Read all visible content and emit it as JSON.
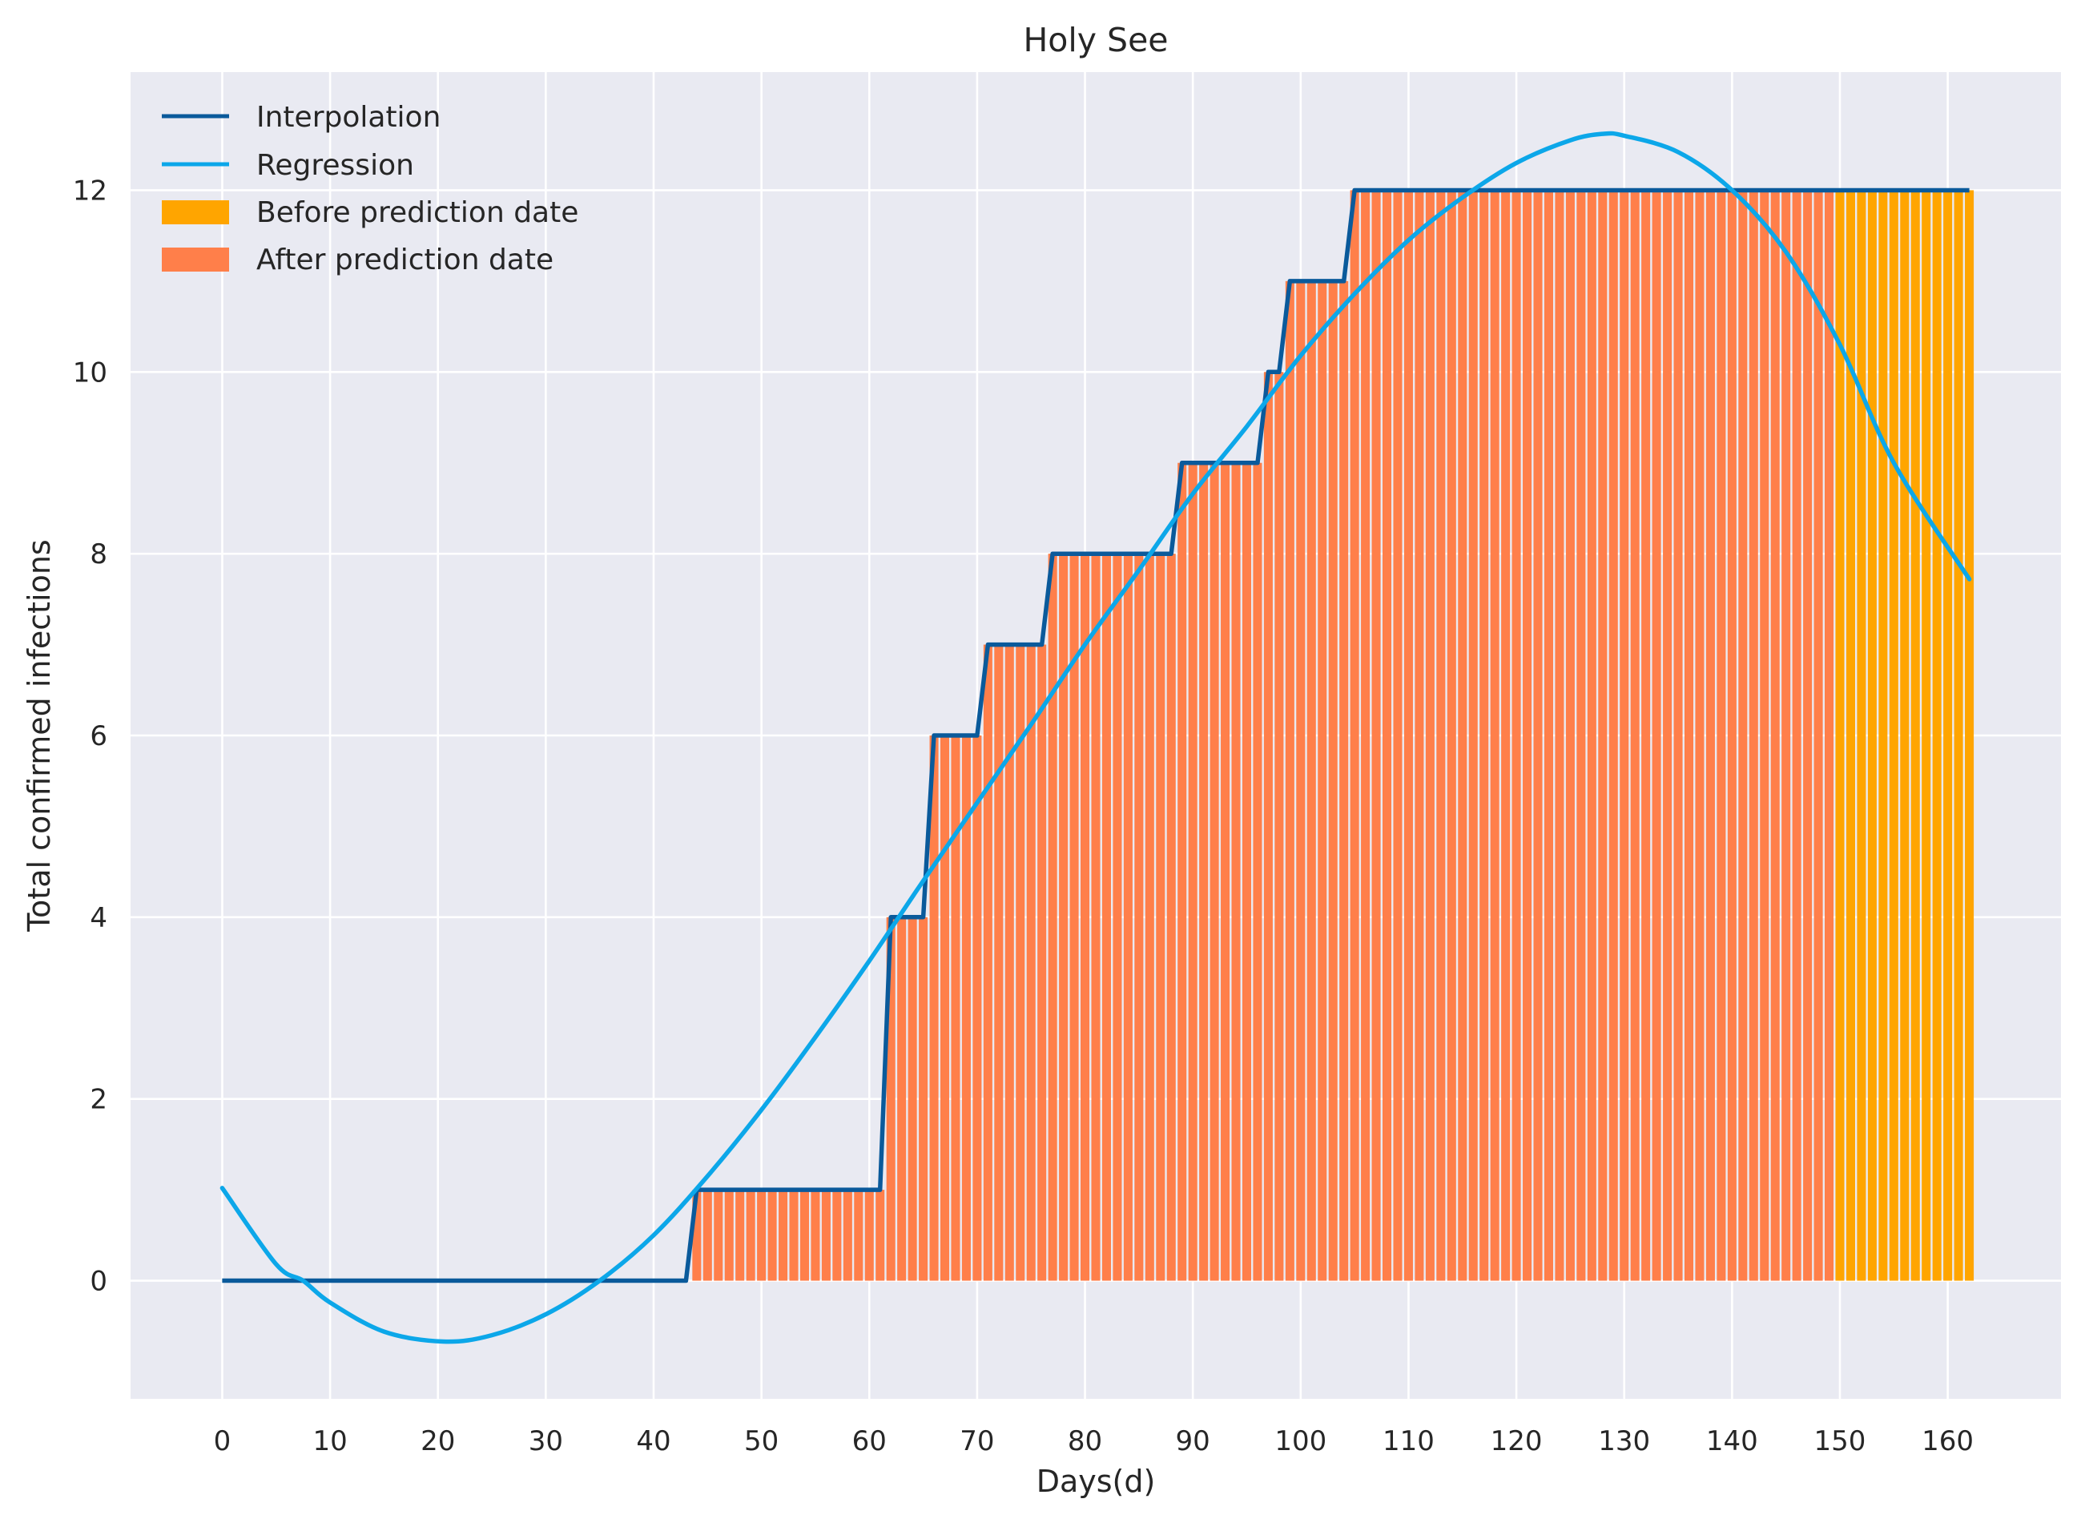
{
  "chart_data": {
    "type": "bar",
    "title": "Holy See",
    "xlabel": "Days(d)",
    "ylabel": "Total confirmed infections",
    "xlim": [
      -8.5,
      170.5
    ],
    "ylim": [
      -1.3,
      13.3
    ],
    "xticks": [
      0,
      10,
      20,
      30,
      40,
      50,
      60,
      70,
      80,
      90,
      100,
      110,
      120,
      130,
      140,
      150,
      160
    ],
    "yticks": [
      0,
      2,
      4,
      6,
      8,
      10,
      12
    ],
    "grid": true,
    "background": "#e9eaf2",
    "legend": {
      "position": "top-left",
      "entries": [
        {
          "label": "Interpolation",
          "kind": "line",
          "color": "#0a5a9b"
        },
        {
          "label": "Regression",
          "kind": "line",
          "color": "#0ca7e9"
        },
        {
          "label": "Before prediction date",
          "kind": "patch",
          "color": "#ffa500"
        },
        {
          "label": "After prediction date",
          "kind": "patch",
          "color": "#ff7f4a"
        }
      ]
    },
    "series": [
      {
        "name": "Interpolation",
        "type": "line",
        "color": "#0a5a9b",
        "step_points": [
          [
            0,
            0
          ],
          [
            43,
            0
          ],
          [
            44,
            1
          ],
          [
            61,
            1
          ],
          [
            62,
            4
          ],
          [
            65,
            4
          ],
          [
            66,
            6
          ],
          [
            70,
            6
          ],
          [
            71,
            7
          ],
          [
            76,
            7
          ],
          [
            77,
            8
          ],
          [
            88,
            8
          ],
          [
            89,
            9
          ],
          [
            96,
            9
          ],
          [
            97,
            10
          ],
          [
            98,
            10
          ],
          [
            99,
            11
          ],
          [
            104,
            11
          ],
          [
            105,
            12
          ],
          [
            162,
            12
          ]
        ]
      },
      {
        "name": "Regression",
        "type": "line",
        "color": "#0ca7e9",
        "points": [
          [
            0,
            1.02
          ],
          [
            5,
            0.18
          ],
          [
            7.5,
            0.0
          ],
          [
            10,
            -0.24
          ],
          [
            15,
            -0.56
          ],
          [
            20.5,
            -0.67
          ],
          [
            25,
            -0.6
          ],
          [
            30,
            -0.37
          ],
          [
            35,
            0.0
          ],
          [
            40,
            0.5
          ],
          [
            45,
            1.15
          ],
          [
            50,
            1.88
          ],
          [
            55,
            2.68
          ],
          [
            60,
            3.52
          ],
          [
            65,
            4.4
          ],
          [
            70,
            5.26
          ],
          [
            75,
            6.12
          ],
          [
            80,
            7.0
          ],
          [
            85,
            7.82
          ],
          [
            90,
            8.66
          ],
          [
            95,
            9.4
          ],
          [
            100,
            10.18
          ],
          [
            105,
            10.86
          ],
          [
            110,
            11.45
          ],
          [
            115,
            11.92
          ],
          [
            120,
            12.3
          ],
          [
            125,
            12.55
          ],
          [
            128,
            12.62
          ],
          [
            130,
            12.6
          ],
          [
            135,
            12.42
          ],
          [
            140,
            12.0
          ],
          [
            145,
            11.32
          ],
          [
            150,
            10.3
          ],
          [
            155,
            9.0
          ],
          [
            162,
            7.72
          ]
        ]
      },
      {
        "name": "Bars",
        "type": "bar",
        "x_start": 44,
        "x_end": 162,
        "bar_width": 0.82,
        "split_x": 150,
        "before_color": "#ffa500",
        "after_color": "#ff7f4a"
      }
    ]
  }
}
